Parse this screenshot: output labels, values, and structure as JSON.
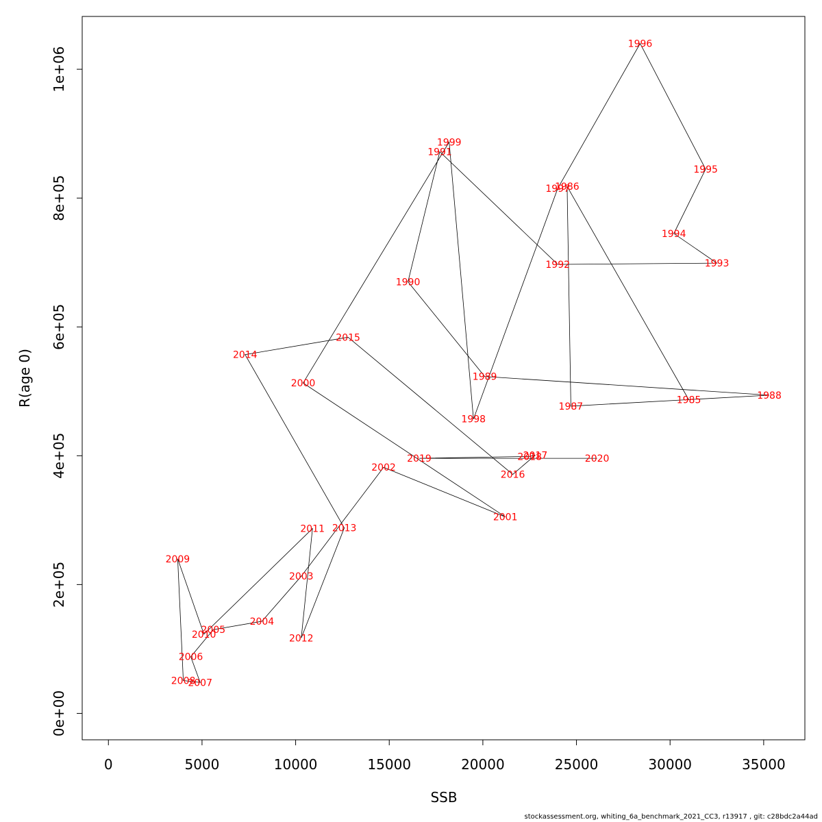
{
  "chart_data": {
    "type": "line",
    "title": "",
    "xlabel": "SSB",
    "ylabel": "R(age 0)",
    "xlim": [
      -1400,
      37200
    ],
    "ylim": [
      -41000,
      1082000
    ],
    "xticks": [
      0,
      5000,
      10000,
      15000,
      20000,
      25000,
      30000,
      35000
    ],
    "xtick_labels": [
      "0",
      "5000",
      "10000",
      "15000",
      "20000",
      "25000",
      "30000",
      "35000"
    ],
    "yticks": [
      0,
      200000,
      400000,
      600000,
      800000,
      1000000
    ],
    "ytick_labels": [
      "0e+00",
      "2e+05",
      "4e+05",
      "6e+05",
      "8e+05",
      "1e+06"
    ],
    "grid": false,
    "line_color": "#000000",
    "label_color": "#ff0000",
    "points": [
      {
        "year": "1985",
        "x": 31000,
        "y": 487000
      },
      {
        "year": "1986",
        "x": 24500,
        "y": 818000
      },
      {
        "year": "1987",
        "x": 24700,
        "y": 477000
      },
      {
        "year": "1988",
        "x": 35300,
        "y": 494000
      },
      {
        "year": "1989",
        "x": 20100,
        "y": 523000
      },
      {
        "year": "1990",
        "x": 16000,
        "y": 670000
      },
      {
        "year": "1991",
        "x": 17700,
        "y": 872000
      },
      {
        "year": "1992",
        "x": 24000,
        "y": 697000
      },
      {
        "year": "1993",
        "x": 32500,
        "y": 699000
      },
      {
        "year": "1994",
        "x": 30200,
        "y": 745000
      },
      {
        "year": "1995",
        "x": 31900,
        "y": 845000
      },
      {
        "year": "1996",
        "x": 28400,
        "y": 1040000
      },
      {
        "year": "1997",
        "x": 24000,
        "y": 815000
      },
      {
        "year": "1998",
        "x": 19500,
        "y": 457000
      },
      {
        "year": "1999",
        "x": 18200,
        "y": 887000
      },
      {
        "year": "2000",
        "x": 10400,
        "y": 513000
      },
      {
        "year": "2001",
        "x": 21200,
        "y": 305000
      },
      {
        "year": "2002",
        "x": 14700,
        "y": 382000
      },
      {
        "year": "2003",
        "x": 10300,
        "y": 213000
      },
      {
        "year": "2004",
        "x": 8200,
        "y": 143000
      },
      {
        "year": "2005",
        "x": 5600,
        "y": 130000
      },
      {
        "year": "2006",
        "x": 4400,
        "y": 88000
      },
      {
        "year": "2007",
        "x": 4900,
        "y": 48000
      },
      {
        "year": "2008",
        "x": 4000,
        "y": 51000
      },
      {
        "year": "2009",
        "x": 3700,
        "y": 240000
      },
      {
        "year": "2010",
        "x": 5100,
        "y": 123000
      },
      {
        "year": "2011",
        "x": 10900,
        "y": 287000
      },
      {
        "year": "2012",
        "x": 10300,
        "y": 117000
      },
      {
        "year": "2013",
        "x": 12600,
        "y": 288000
      },
      {
        "year": "2014",
        "x": 7300,
        "y": 557000
      },
      {
        "year": "2015",
        "x": 12800,
        "y": 584000
      },
      {
        "year": "2016",
        "x": 21600,
        "y": 371000
      },
      {
        "year": "2017",
        "x": 22800,
        "y": 401000
      },
      {
        "year": "2018",
        "x": 22500,
        "y": 399000
      },
      {
        "year": "2019",
        "x": 16600,
        "y": 396000
      },
      {
        "year": "2020",
        "x": 26100,
        "y": 396000
      }
    ]
  },
  "footer": "stockassessment.org, whiting_6a_benchmark_2021_CC3, r13917 , git: c28bdc2a44ad"
}
